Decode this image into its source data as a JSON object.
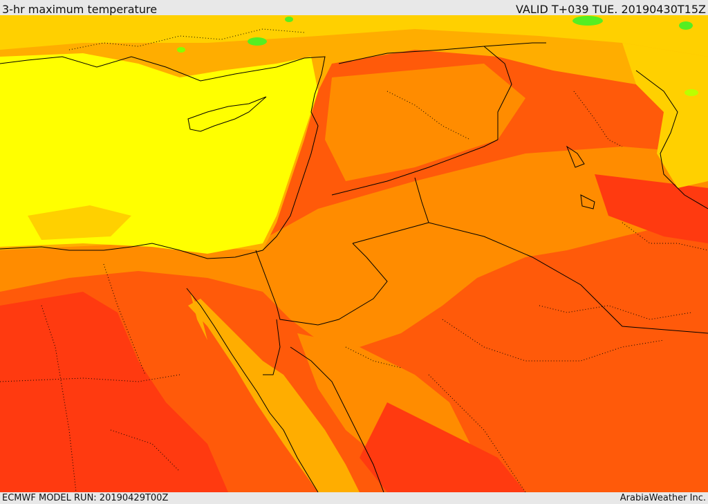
{
  "header": {
    "title": "3-hr maximum temperature",
    "valid": "VALID T+039 TUE. 20190430T15Z"
  },
  "footer": {
    "model_run": "ECMWF MODEL RUN: 20190429T00Z",
    "credit": "ArabiaWeather Inc."
  },
  "colors": {
    "hot_red": "#ff3a10",
    "orange_red": "#ff5a0a",
    "orange": "#ff8c00",
    "amber": "#ffad00",
    "gold": "#ffd000",
    "yellow": "#ffff00",
    "green": "#55ee22",
    "border": "#000000"
  }
}
